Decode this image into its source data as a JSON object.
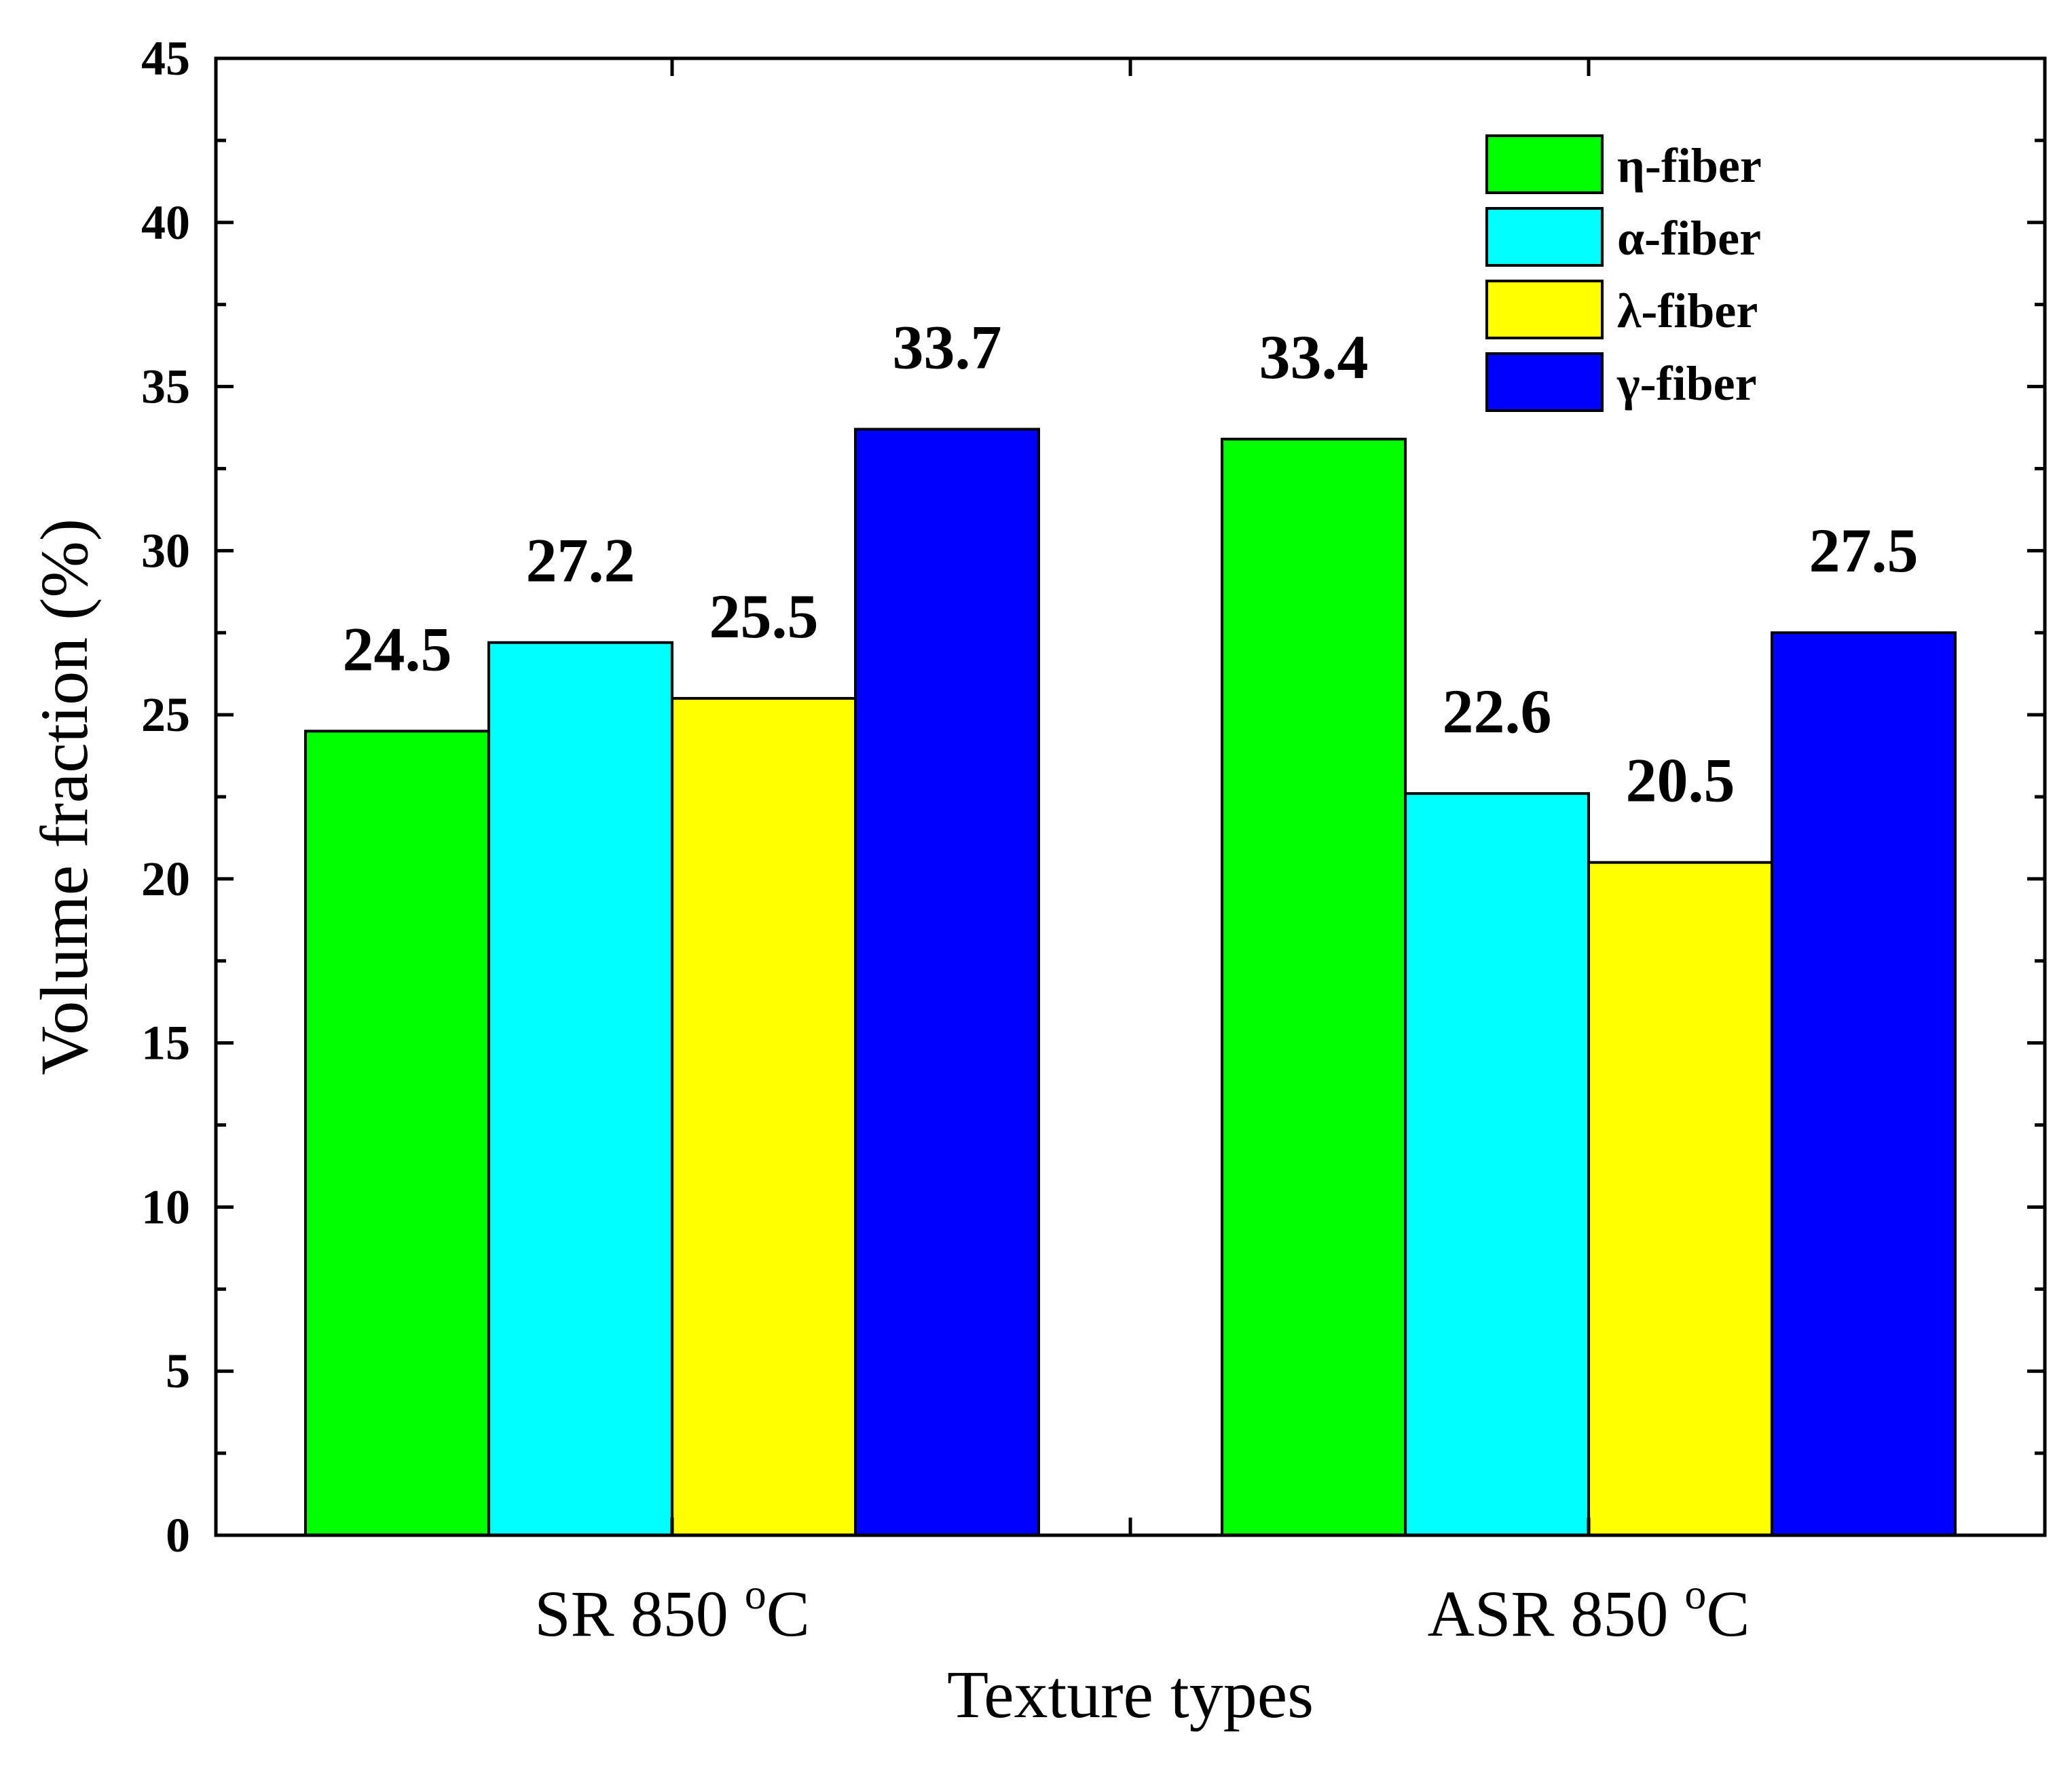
{
  "chart_data": {
    "type": "bar",
    "title": "",
    "xlabel": "Texture types",
    "ylabel": "Volume fraction (%)",
    "ylim": [
      0,
      45
    ],
    "yticks": [
      0,
      5,
      10,
      15,
      20,
      25,
      30,
      35,
      40,
      45
    ],
    "grid": false,
    "legend_position": "top-right",
    "categories": [
      {
        "main": "SR 850 ",
        "sup": "o",
        "tail": "C"
      },
      {
        "main": "ASR 850 ",
        "sup": "o",
        "tail": "C"
      }
    ],
    "series": [
      {
        "name": "η-fiber",
        "color": "#00ff00",
        "values": [
          24.5,
          33.4
        ],
        "labels": [
          "24.5",
          "33.4"
        ]
      },
      {
        "name": "α-fiber",
        "color": "#00ffff",
        "values": [
          27.2,
          22.6
        ],
        "labels": [
          "27.2",
          "22.6"
        ]
      },
      {
        "name": "λ-fiber",
        "color": "#ffff00",
        "values": [
          25.5,
          20.5
        ],
        "labels": [
          "25.5",
          "20.5"
        ]
      },
      {
        "name": "γ-fiber",
        "color": "#0000ff",
        "values": [
          33.7,
          27.5
        ],
        "labels": [
          "33.7",
          "27.5"
        ]
      }
    ]
  }
}
